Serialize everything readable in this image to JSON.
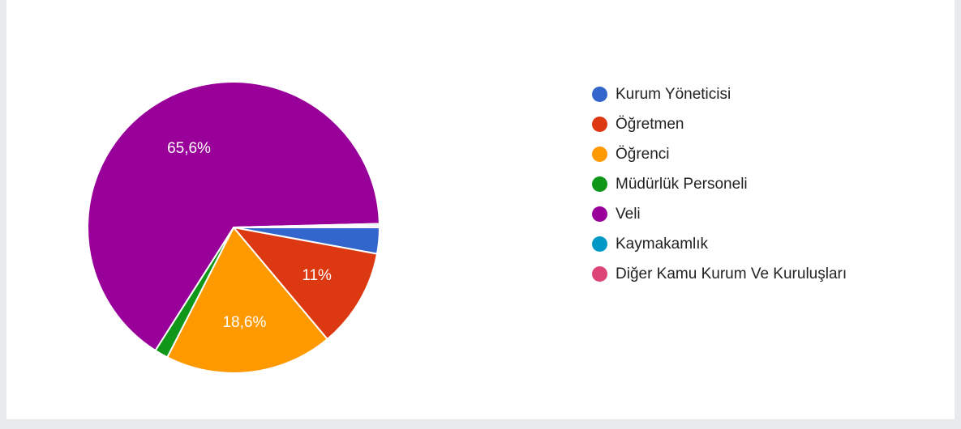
{
  "chart_data": {
    "type": "pie",
    "categories": [
      "Kurum Yöneticisi",
      "Öğretmen",
      "Öğrenci",
      "Müdürlük Personeli",
      "Veli",
      "Kaymakamlık",
      "Diğer Kamu Kurum Ve Kuruluşları"
    ],
    "values": [
      2.9,
      11,
      18.6,
      1.5,
      65.6,
      0.2,
      0.2
    ],
    "colors": [
      "#3366cc",
      "#dc3912",
      "#ff9900",
      "#109618",
      "#990099",
      "#0099c6",
      "#dd4477"
    ],
    "data_labels": [
      "",
      "11%",
      "18,6%",
      "",
      "65,6%",
      "",
      ""
    ],
    "legend_position": "right",
    "start_direction": "from the right, clockwise"
  }
}
